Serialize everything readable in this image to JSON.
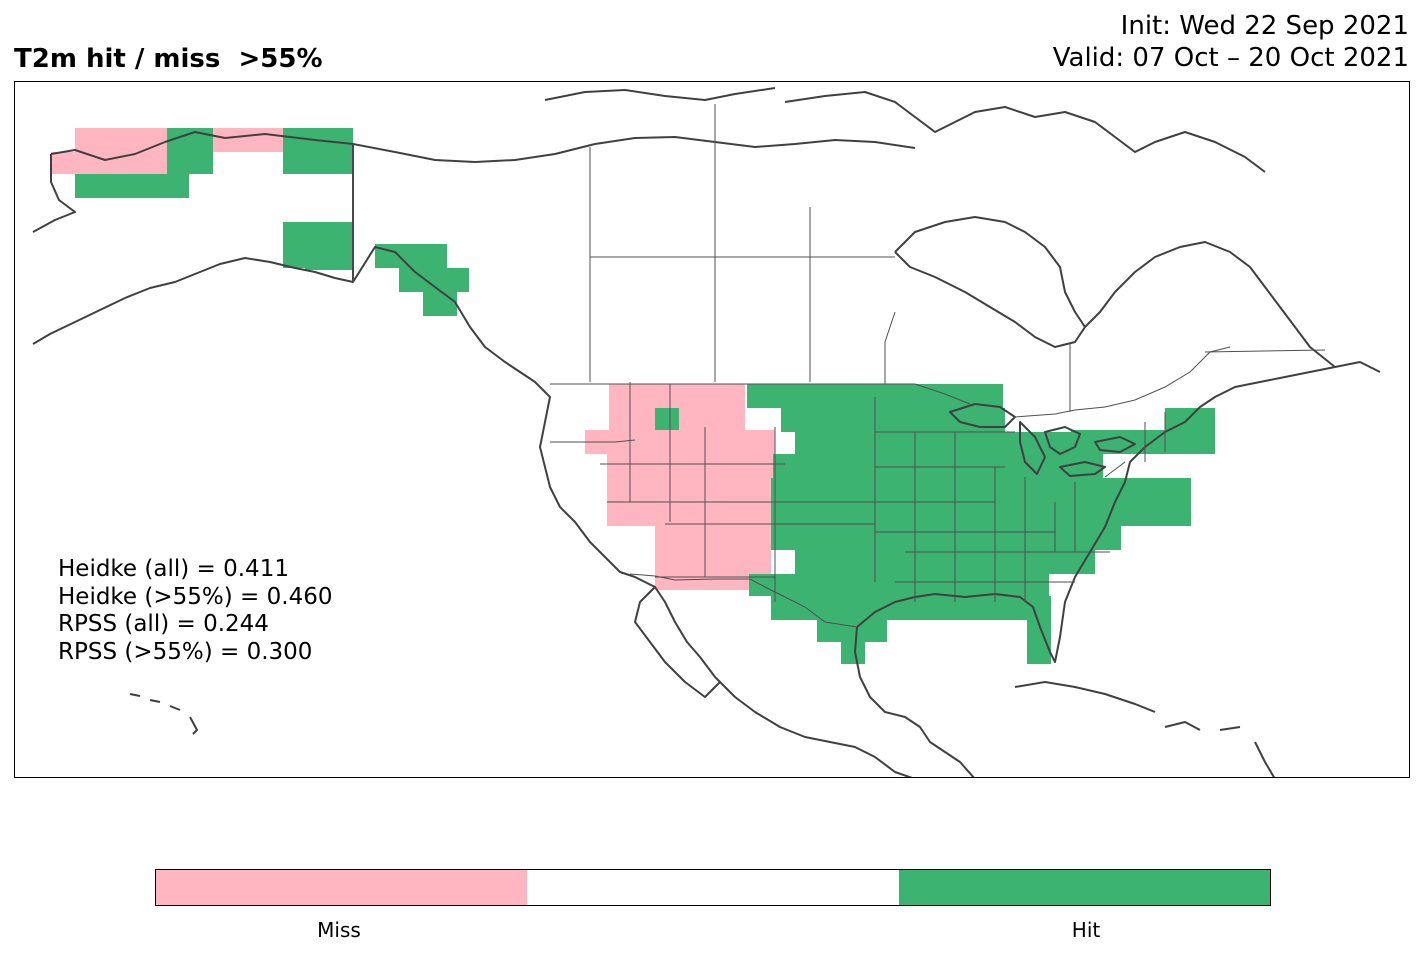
{
  "title": {
    "main": "T2m hit / miss  >55%",
    "init": "Init: Wed 22 Sep 2021",
    "valid": "Valid: 07 Oct – 20 Oct 2021"
  },
  "stats": [
    "Heidke (all) = 0.411",
    "Heidke (>55%) = 0.460",
    "RPSS (all) = 0.244",
    "RPSS (>55%) = 0.300"
  ],
  "legend": {
    "miss_label": "Miss",
    "hit_label": "Hit",
    "colors": {
      "miss": "#ffb6c1",
      "neutral": "#ffffff",
      "hit": "#3cb371"
    }
  },
  "map": {
    "region": "North America",
    "categories": [
      "Miss",
      "Hit"
    ]
  }
}
